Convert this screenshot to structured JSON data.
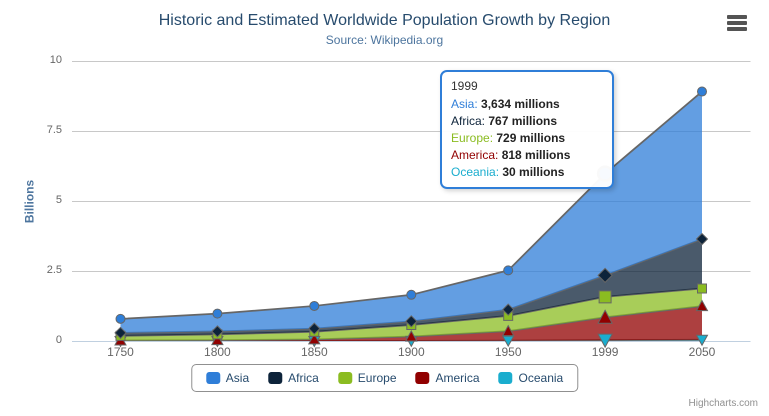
{
  "header": {
    "title": "Historic and Estimated Worldwide Population Growth by Region",
    "subtitle": "Source: Wikipedia.org"
  },
  "context_menu": {
    "icon": "hamburger-icon"
  },
  "chart_data": {
    "type": "area",
    "stacking": "normal",
    "title": "Historic and Estimated Worldwide Population Growth by Region",
    "subtitle": "Source: Wikipedia.org",
    "categories": [
      "1750",
      "1800",
      "1850",
      "1900",
      "1950",
      "1999",
      "2050"
    ],
    "xlabel": "",
    "ylabel": "Billions",
    "unit": "millions",
    "ylim_billions": [
      0,
      10
    ],
    "ytick_values": [
      0,
      2.5,
      5,
      7.5,
      10
    ],
    "ytick_labels": [
      "0",
      "2.5",
      "5",
      "7.5",
      "10"
    ],
    "grid": "horizontal",
    "legend_position": "bottom",
    "series": [
      {
        "name": "Asia",
        "color": "#2f7ed8",
        "marker": "circle",
        "values_millions": [
          502,
          635,
          809,
          947,
          1402,
          3634,
          5268
        ]
      },
      {
        "name": "Africa",
        "color": "#0d233a",
        "marker": "diamond",
        "values_millions": [
          106,
          107,
          111,
          133,
          221,
          767,
          1766
        ]
      },
      {
        "name": "Europe",
        "color": "#8bbc21",
        "marker": "square",
        "values_millions": [
          163,
          203,
          276,
          408,
          547,
          729,
          628
        ]
      },
      {
        "name": "America",
        "color": "#910000",
        "marker": "triangle",
        "values_millions": [
          18,
          31,
          54,
          156,
          339,
          818,
          1201
        ]
      },
      {
        "name": "Oceania",
        "color": "#1aadce",
        "marker": "triangle-down",
        "values_millions": [
          2,
          2,
          2,
          6,
          13,
          30,
          46
        ]
      }
    ],
    "area_line_color": "#666666",
    "grid_line_color": "#c8c8c8",
    "axis_line_color": "#c0d0e0"
  },
  "tooltip": {
    "category": "1999",
    "border_color": "#2f7ed8",
    "rows": [
      {
        "series": "Asia",
        "value": "3,634 millions"
      },
      {
        "series": "Africa",
        "value": "767 millions"
      },
      {
        "series": "Europe",
        "value": "729 millions"
      },
      {
        "series": "America",
        "value": "818 millions"
      },
      {
        "series": "Oceania",
        "value": "30 millions"
      }
    ]
  },
  "credits": "Highcharts.com"
}
